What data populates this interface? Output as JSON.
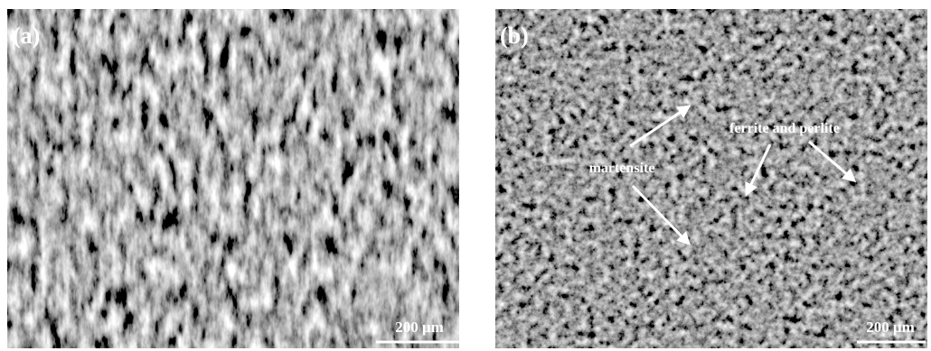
{
  "panels": [
    {
      "label": "(a)",
      "scale_bar": "200 μm"
    },
    {
      "label": "(b)",
      "scale_bar": "200 μm",
      "annotations": [
        "martensite",
        "ferrite and perlite"
      ]
    }
  ]
}
